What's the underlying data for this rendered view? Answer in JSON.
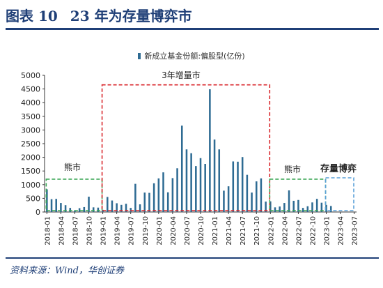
{
  "figure": {
    "label": "图表 10",
    "title": "23 年为存量博弈市"
  },
  "source": "资料来源：Wind，华创证券",
  "chart_data": {
    "type": "bar",
    "series": [
      {
        "name": "新成立基金份额:偏股型(亿份)",
        "color": "#2e6b93",
        "values": [
          830,
          470,
          480,
          330,
          250,
          150,
          60,
          140,
          180,
          560,
          170,
          160,
          80,
          550,
          420,
          320,
          260,
          300,
          150,
          1030,
          280,
          710,
          700,
          1050,
          1230,
          1450,
          720,
          1240,
          1600,
          3160,
          2290,
          2150,
          1680,
          1970,
          1760,
          4490,
          2650,
          2290,
          780,
          940,
          1850,
          1840,
          2010,
          1360,
          710,
          1120,
          1230,
          380,
          390,
          170,
          200,
          330,
          790,
          410,
          440,
          150,
          210,
          350,
          480,
          340,
          260,
          220
        ]
      }
    ],
    "x": [
      "2018-01",
      "2018-02",
      "2018-03",
      "2018-04",
      "2018-05",
      "2018-06",
      "2018-07",
      "2018-08",
      "2018-09",
      "2018-10",
      "2018-11",
      "2018-12",
      "2019-01",
      "2019-02",
      "2019-03",
      "2019-04",
      "2019-05",
      "2019-06",
      "2019-07",
      "2019-08",
      "2019-09",
      "2019-10",
      "2019-11",
      "2019-12",
      "2020-01",
      "2020-02",
      "2020-03",
      "2020-04",
      "2020-05",
      "2020-06",
      "2020-07",
      "2020-08",
      "2020-09",
      "2020-10",
      "2020-11",
      "2020-12",
      "2021-01",
      "2021-02",
      "2021-03",
      "2021-04",
      "2021-05",
      "2021-06",
      "2021-07",
      "2021-08",
      "2021-09",
      "2021-10",
      "2021-11",
      "2021-12",
      "2022-01",
      "2022-02",
      "2022-03",
      "2022-04",
      "2022-05",
      "2022-06",
      "2022-07",
      "2022-08",
      "2022-09",
      "2022-10",
      "2022-11",
      "2022-12",
      "2023-01",
      "2023-02"
    ],
    "tick_labels": [
      "2018-01",
      "2018-04",
      "2018-07",
      "2018-10",
      "2019-01",
      "2019-04",
      "2019-07",
      "2019-10",
      "2020-01",
      "2020-04",
      "2020-07",
      "2020-10",
      "2021-01",
      "2021-04",
      "2021-07",
      "2021-10",
      "2022-01",
      "2022-04",
      "2022-07",
      "2022-10",
      "2023-01",
      "2023-04",
      "2023-07"
    ],
    "y_ticks": [
      0,
      500,
      1000,
      1500,
      2000,
      2500,
      3000,
      3500,
      4000,
      4500,
      5000
    ],
    "ylim": [
      0,
      5000
    ],
    "legend_position": "top-center",
    "grid": false,
    "annotations": [
      {
        "label": "熊市",
        "from": "2018-01",
        "to": "2019-01",
        "y_top": 1200,
        "color": "#3aa655",
        "style": "dashed"
      },
      {
        "label": "3年增量市",
        "from": "2019-01",
        "to": "2022-01",
        "y_top": 4650,
        "color": "#d9262c",
        "style": "dashed"
      },
      {
        "label": "熊市",
        "from": "2022-01",
        "to": "2023-01",
        "y_top": 1200,
        "color": "#3aa655",
        "style": "dashed"
      },
      {
        "label": "存量博弈",
        "from": "2023-01",
        "to": "2023-07",
        "y_top": 1250,
        "color": "#5aa0d8",
        "style": "dashed"
      }
    ]
  }
}
